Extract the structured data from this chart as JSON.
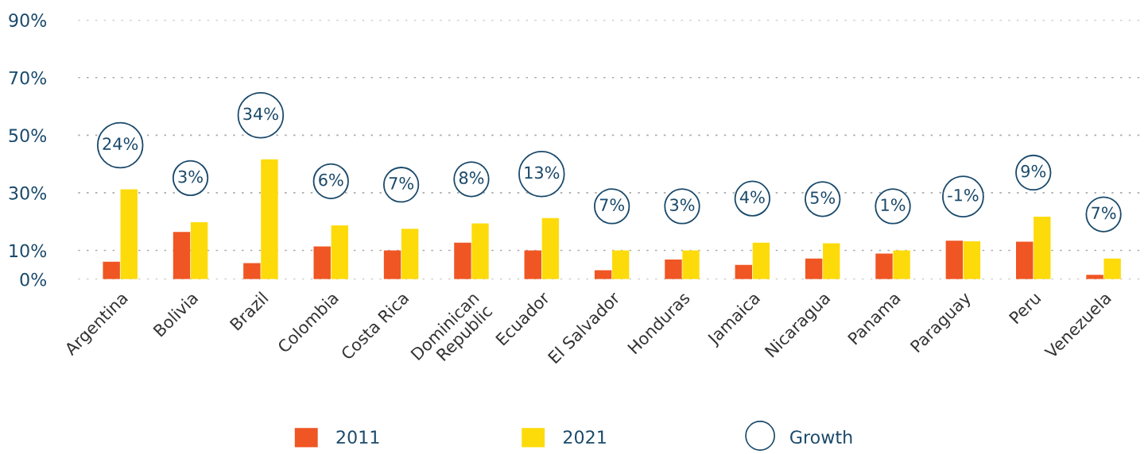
{
  "chart_data": {
    "type": "bar",
    "categories": [
      "Argentina",
      "Bolivia",
      "Brazil",
      "Colombia",
      "Costa Rica",
      "Dominican\nRepublic",
      "Ecuador",
      "El Salvador",
      "Honduras",
      "Jamaica",
      "Nicaragua",
      "Panama",
      "Paraguay",
      "Peru",
      "Venezuela"
    ],
    "series": [
      {
        "name": "2011",
        "color": "#ef5623",
        "values": [
          6.1,
          16.4,
          5.6,
          11.4,
          10.0,
          12.7,
          10.0,
          3.1,
          6.8,
          5.0,
          7.2,
          8.9,
          13.4,
          13.0,
          1.5
        ]
      },
      {
        "name": "2021",
        "color": "#fddb0b",
        "values": [
          31.2,
          19.8,
          41.6,
          18.7,
          17.5,
          19.4,
          21.2,
          10.0,
          10.0,
          12.7,
          12.5,
          10.0,
          13.2,
          21.7,
          7.2
        ]
      },
      {
        "name": "Growth",
        "type": "scatter",
        "marker": "circle",
        "color": "#1b4a6b",
        "values": [
          null,
          null,
          null,
          null,
          null,
          null,
          null,
          null,
          null,
          null,
          null,
          null,
          null,
          null,
          null
        ]
      }
    ],
    "annotations": [
      "24%",
      "3%",
      "34%",
      "6%",
      "7%",
      "8%",
      "13%",
      "7%",
      "3%",
      "4%",
      "5%",
      "1%",
      "-1%",
      "9%",
      "7%"
    ],
    "ylim": [
      0,
      90
    ],
    "yticks": [
      {
        "value": 0,
        "label": "0%"
      },
      {
        "value": 10,
        "label": "10%"
      },
      {
        "value": 30,
        "label": "30%"
      },
      {
        "value": 50,
        "label": "50%"
      },
      {
        "value": 70,
        "label": "70%"
      },
      {
        "value": 90,
        "label": "90%"
      }
    ],
    "grid": "y",
    "legend": "bottom"
  }
}
